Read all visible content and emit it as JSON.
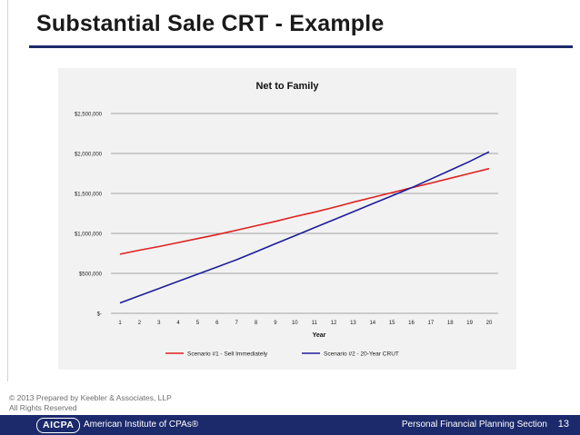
{
  "slide": {
    "title": "Substantial Sale CRT - Example",
    "copyright_line1": "© 2013 Prepared by Keebler & Associates, LLP",
    "copyright_line2": "All Rights Reserved"
  },
  "footer": {
    "logo_text": "AICPA",
    "org_name": "American Institute of CPAs®",
    "section": "Personal Financial Planning Section",
    "page_number": "13"
  },
  "chart_data": {
    "type": "line",
    "title": "Net to Family",
    "xlabel": "Year",
    "ylabel": "",
    "x": [
      1,
      2,
      3,
      4,
      5,
      6,
      7,
      8,
      9,
      10,
      11,
      12,
      13,
      14,
      15,
      16,
      17,
      18,
      19,
      20
    ],
    "ylim": [
      0,
      2500000
    ],
    "yticks": [
      0,
      500000,
      1000000,
      1500000,
      2000000,
      2500000
    ],
    "ytick_labels": [
      "$-",
      "$500,000",
      "$1,000,000",
      "$1,500,000",
      "$2,000,000",
      "$2,500,000"
    ],
    "grid": true,
    "legend": "bottom",
    "series": [
      {
        "name": "Scenario #1 - Sell Immediately",
        "color": "#e02020",
        "values": [
          740000,
          790000,
          835000,
          885000,
          935000,
          985000,
          1040000,
          1095000,
          1150000,
          1210000,
          1265000,
          1325000,
          1390000,
          1450000,
          1510000,
          1570000,
          1630000,
          1690000,
          1750000,
          1810000
        ]
      },
      {
        "name": "Scenario #2 - 20-Year CRUT",
        "color": "#1c1c9c",
        "values": [
          130000,
          220000,
          310000,
          400000,
          490000,
          580000,
          670000,
          770000,
          870000,
          970000,
          1070000,
          1170000,
          1270000,
          1370000,
          1470000,
          1570000,
          1680000,
          1790000,
          1900000,
          2020000
        ]
      }
    ]
  }
}
